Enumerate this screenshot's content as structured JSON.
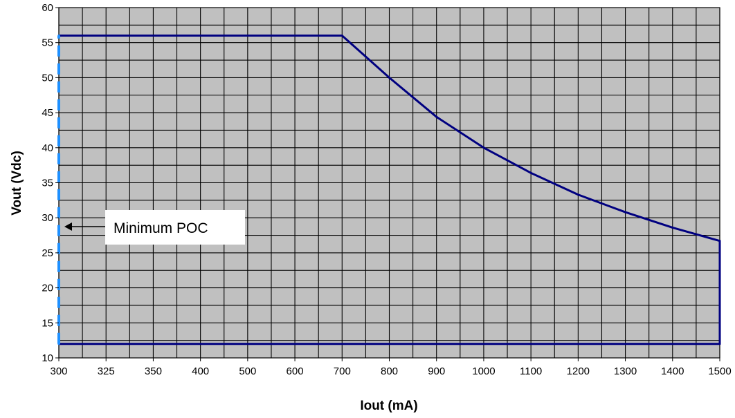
{
  "chart_data": {
    "type": "line",
    "title": "",
    "xlabel": "Iout (mA)",
    "ylabel": "Vout (Vdc)",
    "x_categories": [
      "300",
      "325",
      "350",
      "400",
      "500",
      "600",
      "700",
      "800",
      "900",
      "1000",
      "1100",
      "1200",
      "1300",
      "1400",
      "1500"
    ],
    "ylim": [
      10,
      60
    ],
    "yticks": [
      "10",
      "15",
      "20",
      "25",
      "30",
      "35",
      "40",
      "45",
      "50",
      "55",
      "60"
    ],
    "grid": true,
    "legend": "none",
    "colors": {
      "plot_background": "#c0c0c0",
      "grid": "#000000",
      "boundary": "#000080",
      "min_poc": "#1e90ff"
    },
    "series": [
      {
        "role": "upper-boundary",
        "points": [
          {
            "x": "300",
            "y": 56
          },
          {
            "x": "700",
            "y": 56
          },
          {
            "x": "800",
            "y": 50
          },
          {
            "x": "900",
            "y": 44.4
          },
          {
            "x": "1000",
            "y": 40
          },
          {
            "x": "1100",
            "y": 36.4
          },
          {
            "x": "1200",
            "y": 33.3
          },
          {
            "x": "1300",
            "y": 30.8
          },
          {
            "x": "1400",
            "y": 28.6
          },
          {
            "x": "1500",
            "y": 26.7
          }
        ]
      },
      {
        "role": "lower-boundary",
        "points": [
          {
            "x": "300",
            "y": 12
          },
          {
            "x": "1500",
            "y": 12
          }
        ]
      },
      {
        "role": "right-boundary",
        "points": [
          {
            "x": "1500",
            "y": 12
          },
          {
            "x": "1500",
            "y": 26.7
          }
        ]
      },
      {
        "role": "minimum-poc",
        "style": "dashed",
        "points": [
          {
            "x": "300",
            "y": 12
          },
          {
            "x": "300",
            "y": 56
          }
        ]
      }
    ],
    "annotations": [
      {
        "text": "Minimum POC",
        "points_to": {
          "x": "300",
          "y": 28.7
        }
      }
    ]
  }
}
